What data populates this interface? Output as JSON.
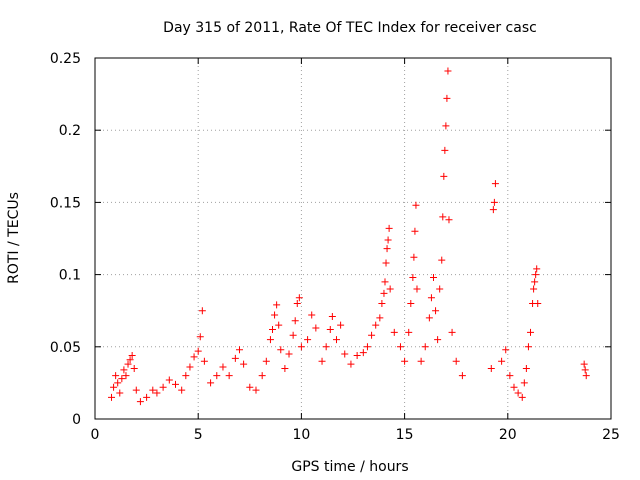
{
  "chart_data": {
    "type": "scatter",
    "title": "Day 315 of 2011, Rate Of TEC Index for receiver casc",
    "xlabel": "GPS time / hours",
    "ylabel": "ROTI / TECUs",
    "xlim": [
      0,
      25
    ],
    "ylim": [
      0,
      0.25
    ],
    "x_ticks": [
      0,
      5,
      10,
      15,
      20,
      25
    ],
    "x_tick_labels": [
      "0",
      "5",
      "10",
      "15",
      "20",
      "25"
    ],
    "y_ticks": [
      0,
      0.05,
      0.1,
      0.15,
      0.2,
      0.25
    ],
    "y_tick_labels": [
      "0",
      "0.05",
      "0.1",
      "0.15",
      "0.2",
      "0.25"
    ],
    "grid": true,
    "marker": "+",
    "color": "#ff0000",
    "series": [
      {
        "values": [
          [
            0.8,
            0.015
          ],
          [
            0.9,
            0.022
          ],
          [
            1.0,
            0.03
          ],
          [
            1.1,
            0.025
          ],
          [
            1.2,
            0.018
          ],
          [
            1.3,
            0.028
          ],
          [
            1.4,
            0.034
          ],
          [
            1.5,
            0.03
          ],
          [
            1.6,
            0.038
          ],
          [
            1.7,
            0.041
          ],
          [
            1.8,
            0.044
          ],
          [
            1.9,
            0.035
          ],
          [
            2.0,
            0.02
          ],
          [
            2.2,
            0.012
          ],
          [
            2.5,
            0.015
          ],
          [
            2.8,
            0.02
          ],
          [
            3.0,
            0.018
          ],
          [
            3.3,
            0.022
          ],
          [
            3.6,
            0.027
          ],
          [
            3.9,
            0.024
          ],
          [
            4.2,
            0.02
          ],
          [
            4.4,
            0.03
          ],
          [
            4.6,
            0.036
          ],
          [
            4.8,
            0.043
          ],
          [
            5.0,
            0.047
          ],
          [
            5.1,
            0.057
          ],
          [
            5.2,
            0.075
          ],
          [
            5.3,
            0.04
          ],
          [
            5.6,
            0.025
          ],
          [
            5.9,
            0.03
          ],
          [
            6.2,
            0.036
          ],
          [
            6.5,
            0.03
          ],
          [
            6.8,
            0.042
          ],
          [
            7.0,
            0.048
          ],
          [
            7.2,
            0.038
          ],
          [
            7.5,
            0.022
          ],
          [
            7.8,
            0.02
          ],
          [
            8.1,
            0.03
          ],
          [
            8.3,
            0.04
          ],
          [
            8.5,
            0.055
          ],
          [
            8.6,
            0.062
          ],
          [
            8.7,
            0.072
          ],
          [
            8.8,
            0.079
          ],
          [
            8.9,
            0.065
          ],
          [
            9.0,
            0.048
          ],
          [
            9.2,
            0.035
          ],
          [
            9.4,
            0.045
          ],
          [
            9.6,
            0.058
          ],
          [
            9.7,
            0.068
          ],
          [
            9.8,
            0.08
          ],
          [
            9.9,
            0.084
          ],
          [
            10.0,
            0.05
          ],
          [
            10.3,
            0.055
          ],
          [
            10.5,
            0.072
          ],
          [
            10.7,
            0.063
          ],
          [
            11.0,
            0.04
          ],
          [
            11.2,
            0.05
          ],
          [
            11.4,
            0.062
          ],
          [
            11.5,
            0.071
          ],
          [
            11.7,
            0.055
          ],
          [
            11.9,
            0.065
          ],
          [
            12.1,
            0.045
          ],
          [
            12.4,
            0.038
          ],
          [
            12.7,
            0.044
          ],
          [
            13.0,
            0.046
          ],
          [
            13.2,
            0.05
          ],
          [
            13.4,
            0.058
          ],
          [
            13.6,
            0.065
          ],
          [
            13.8,
            0.07
          ],
          [
            13.9,
            0.08
          ],
          [
            14.0,
            0.087
          ],
          [
            14.05,
            0.095
          ],
          [
            14.1,
            0.108
          ],
          [
            14.15,
            0.118
          ],
          [
            14.2,
            0.124
          ],
          [
            14.25,
            0.132
          ],
          [
            14.3,
            0.09
          ],
          [
            14.5,
            0.06
          ],
          [
            14.8,
            0.05
          ],
          [
            15.0,
            0.04
          ],
          [
            15.2,
            0.06
          ],
          [
            15.3,
            0.08
          ],
          [
            15.4,
            0.098
          ],
          [
            15.45,
            0.112
          ],
          [
            15.5,
            0.13
          ],
          [
            15.55,
            0.148
          ],
          [
            15.6,
            0.09
          ],
          [
            15.8,
            0.04
          ],
          [
            16.0,
            0.05
          ],
          [
            16.2,
            0.07
          ],
          [
            16.3,
            0.084
          ],
          [
            16.4,
            0.098
          ],
          [
            16.5,
            0.075
          ],
          [
            16.6,
            0.055
          ],
          [
            16.7,
            0.09
          ],
          [
            16.8,
            0.11
          ],
          [
            16.85,
            0.14
          ],
          [
            16.9,
            0.168
          ],
          [
            16.95,
            0.186
          ],
          [
            17.0,
            0.203
          ],
          [
            17.05,
            0.222
          ],
          [
            17.1,
            0.241
          ],
          [
            17.15,
            0.138
          ],
          [
            17.3,
            0.06
          ],
          [
            17.5,
            0.04
          ],
          [
            17.8,
            0.03
          ],
          [
            19.2,
            0.035
          ],
          [
            19.3,
            0.145
          ],
          [
            19.35,
            0.15
          ],
          [
            19.4,
            0.163
          ],
          [
            19.7,
            0.04
          ],
          [
            19.9,
            0.048
          ],
          [
            20.1,
            0.03
          ],
          [
            20.3,
            0.022
          ],
          [
            20.5,
            0.018
          ],
          [
            20.7,
            0.015
          ],
          [
            20.8,
            0.025
          ],
          [
            20.9,
            0.035
          ],
          [
            21.0,
            0.05
          ],
          [
            21.1,
            0.06
          ],
          [
            21.2,
            0.08
          ],
          [
            21.25,
            0.09
          ],
          [
            21.3,
            0.095
          ],
          [
            21.35,
            0.1
          ],
          [
            21.4,
            0.104
          ],
          [
            21.45,
            0.08
          ],
          [
            23.7,
            0.038
          ],
          [
            23.75,
            0.034
          ],
          [
            23.8,
            0.03
          ]
        ]
      }
    ]
  }
}
